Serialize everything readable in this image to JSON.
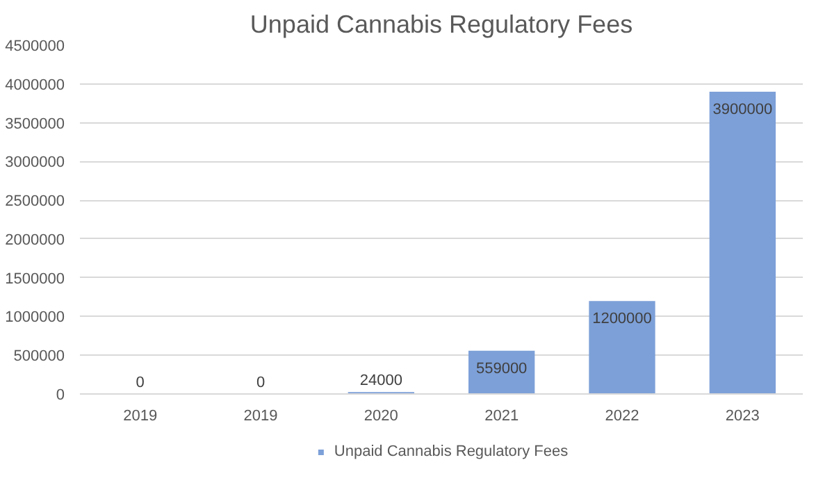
{
  "chart_data": {
    "type": "bar",
    "title": "Unpaid Cannabis Regulatory Fees",
    "categories": [
      "2019",
      "2019",
      "2020",
      "2021",
      "2022",
      "2023"
    ],
    "series": [
      {
        "name": "Unpaid Cannabis Regulatory Fees",
        "color": "#7da0d8",
        "values": [
          0,
          0,
          24000,
          559000,
          1200000,
          3900000
        ]
      }
    ],
    "ylim": [
      0,
      4500000
    ],
    "yticks": [
      0,
      500000,
      1000000,
      1500000,
      2000000,
      2500000,
      3000000,
      3500000,
      4000000,
      4500000
    ],
    "grid": "y",
    "legend": "bottom",
    "data_labels": true
  }
}
